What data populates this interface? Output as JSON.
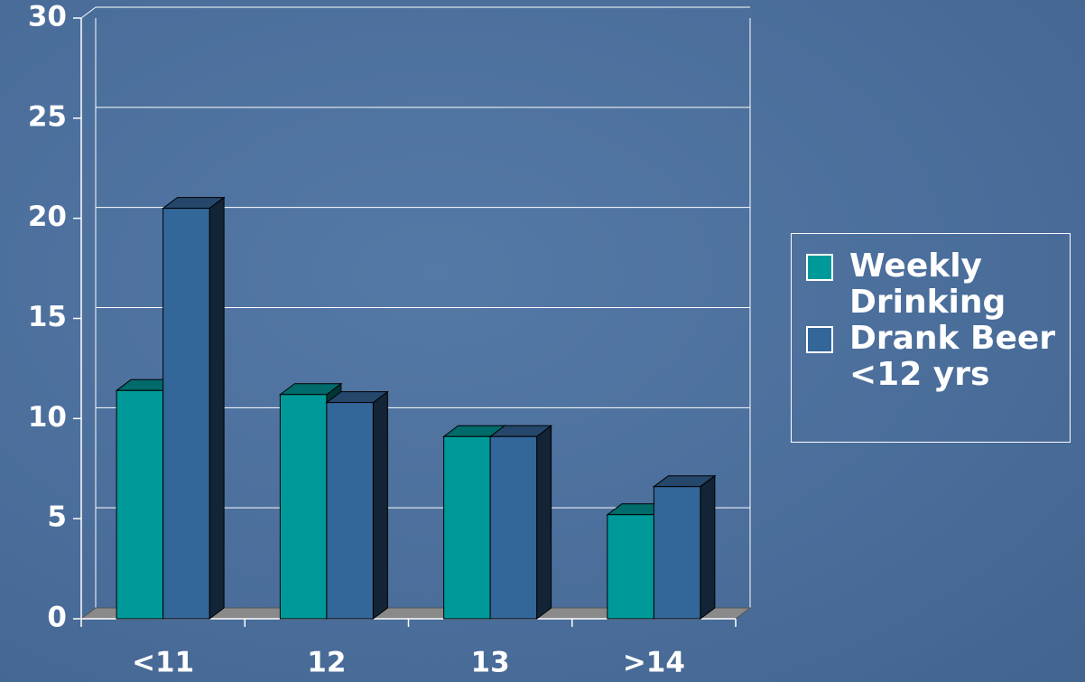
{
  "chart_data": {
    "type": "bar3d",
    "categories": [
      "<11",
      "12",
      "13",
      ">14"
    ],
    "series": [
      {
        "name": "Weekly Drinking",
        "color": "#009999",
        "values": [
          11.4,
          11.2,
          9.1,
          5.2
        ]
      },
      {
        "name": "Drank Beer <12 yrs",
        "color": "#336699",
        "values": [
          20.5,
          10.8,
          9.1,
          6.6
        ]
      }
    ],
    "ylim": [
      0,
      30
    ],
    "yticks": [
      0,
      5,
      10,
      15,
      20,
      25,
      30
    ],
    "grid": true,
    "legend": "right"
  }
}
